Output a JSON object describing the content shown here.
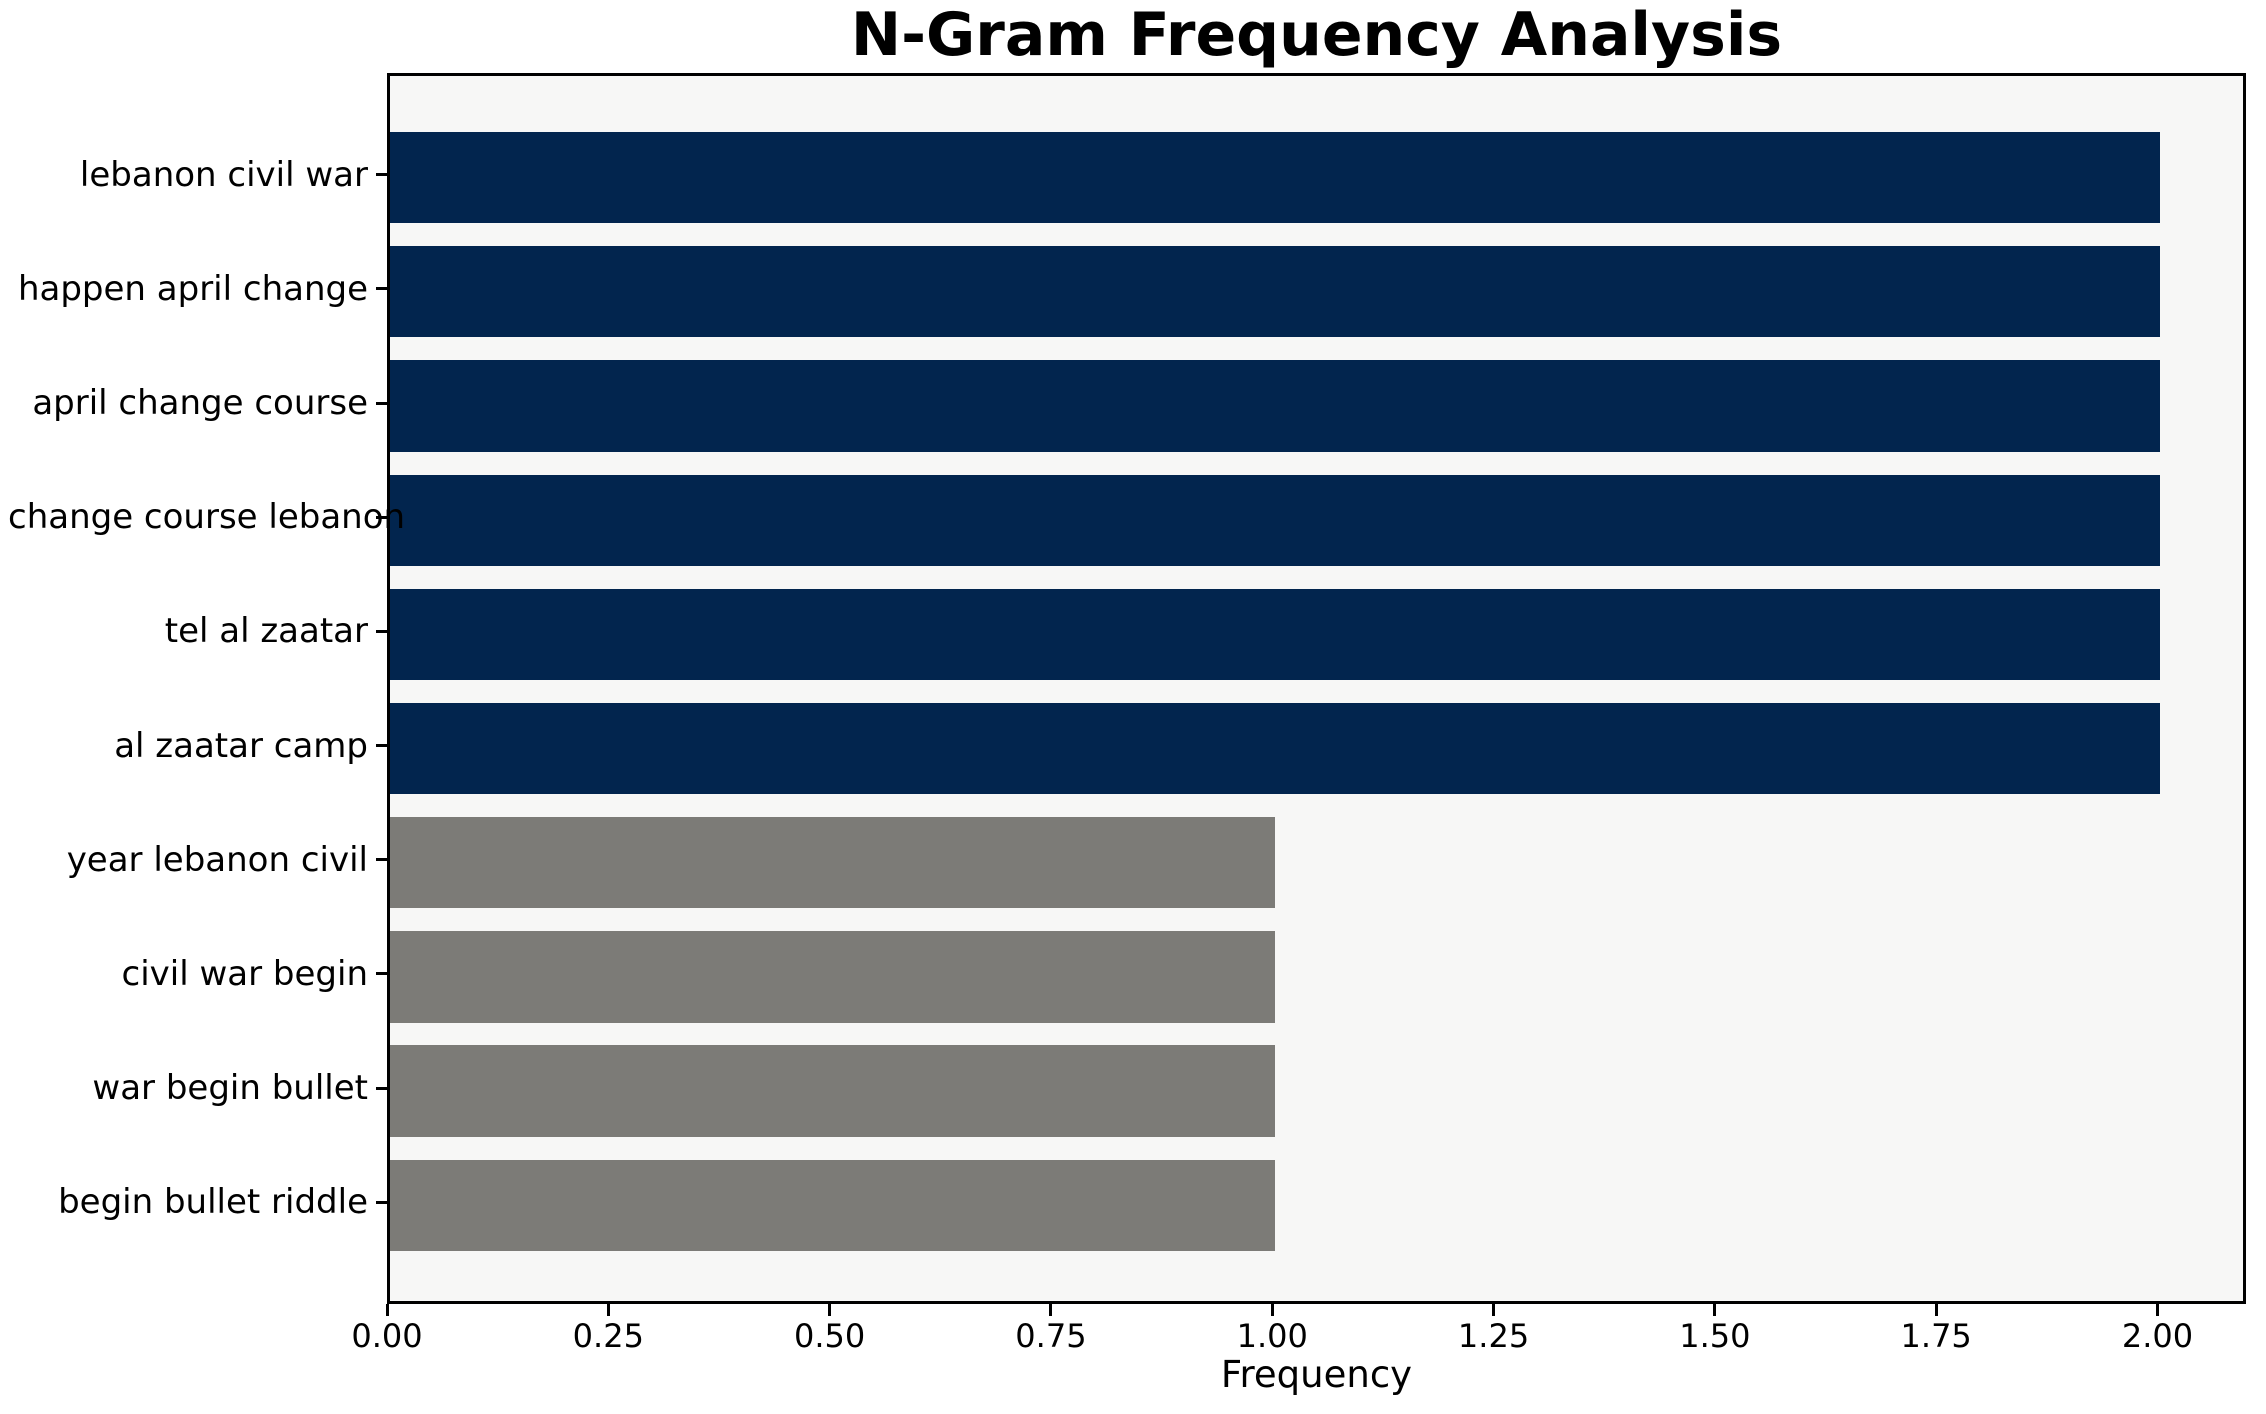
{
  "chart_data": {
    "type": "bar",
    "orientation": "horizontal",
    "title": "N-Gram Frequency Analysis",
    "xlabel": "Frequency",
    "ylabel": "",
    "categories": [
      "lebanon civil war",
      "happen april change",
      "april change course",
      "change course lebanon",
      "tel al zaatar",
      "al zaatar camp",
      "year lebanon civil",
      "civil war begin",
      "war begin bullet",
      "begin bullet riddle"
    ],
    "values": [
      2,
      2,
      2,
      2,
      2,
      2,
      1,
      1,
      1,
      1
    ],
    "bar_colors": [
      "#02254e",
      "#02254e",
      "#02254e",
      "#02254e",
      "#02254e",
      "#02254e",
      "#7c7b77",
      "#7c7b77",
      "#7c7b77",
      "#7c7b77"
    ],
    "xlim": [
      0,
      2.1
    ],
    "xticks": [
      0.0,
      0.25,
      0.5,
      0.75,
      1.0,
      1.25,
      1.5,
      1.75,
      2.0
    ],
    "xtick_labels": [
      "0.00",
      "0.25",
      "0.50",
      "0.75",
      "1.00",
      "1.25",
      "1.50",
      "1.75",
      "2.00"
    ],
    "bar_height_fraction": 0.8,
    "grid": false,
    "legend": null,
    "colors": {
      "high_freq_bar": "#02254e",
      "low_freq_bar": "#7c7b77",
      "plot_background": "#f7f7f6",
      "figure_background": "#ffffff",
      "spine": "#000000",
      "text": "#000000"
    }
  }
}
